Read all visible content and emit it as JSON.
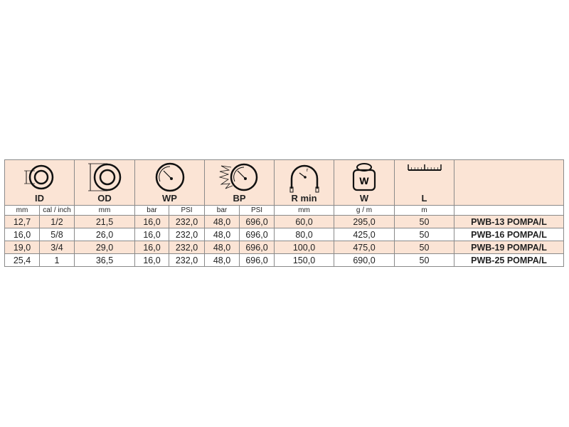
{
  "header": {
    "id": {
      "label": "ID",
      "icon": "hose-inner-diameter-icon"
    },
    "od": {
      "label": "OD",
      "icon": "hose-outer-diameter-icon"
    },
    "wp": {
      "label": "WP",
      "icon": "pressure-gauge-icon"
    },
    "bp": {
      "label": "BP",
      "icon": "burst-pressure-gauge-icon"
    },
    "rmin": {
      "label": "R min",
      "icon": "bend-radius-icon"
    },
    "w": {
      "label": "W",
      "icon": "weight-icon",
      "icon_text": "W"
    },
    "l": {
      "label": "L",
      "icon": "ruler-icon"
    }
  },
  "units": [
    "mm",
    "cal / inch",
    "mm",
    "bar",
    "PSI",
    "bar",
    "PSI",
    "mm",
    "g / m",
    "m",
    ""
  ],
  "rows": [
    [
      "12,7",
      "1/2",
      "21,5",
      "16,0",
      "232,0",
      "48,0",
      "696,0",
      "60,0",
      "295,0",
      "50",
      "PWB-13 POMPA/L"
    ],
    [
      "16,0",
      "5/8",
      "26,0",
      "16,0",
      "232,0",
      "48,0",
      "696,0",
      "80,0",
      "425,0",
      "50",
      "PWB-16 POMPA/L"
    ],
    [
      "19,0",
      "3/4",
      "29,0",
      "16,0",
      "232,0",
      "48,0",
      "696,0",
      "100,0",
      "475,0",
      "50",
      "PWB-19 POMPA/L"
    ],
    [
      "25,4",
      "1",
      "36,5",
      "16,0",
      "232,0",
      "48,0",
      "696,0",
      "150,0",
      "690,0",
      "50",
      "PWB-25 POMPA/L"
    ]
  ],
  "colors": {
    "header_bg": "#fbe4d5",
    "border": "#8a8a8a"
  }
}
